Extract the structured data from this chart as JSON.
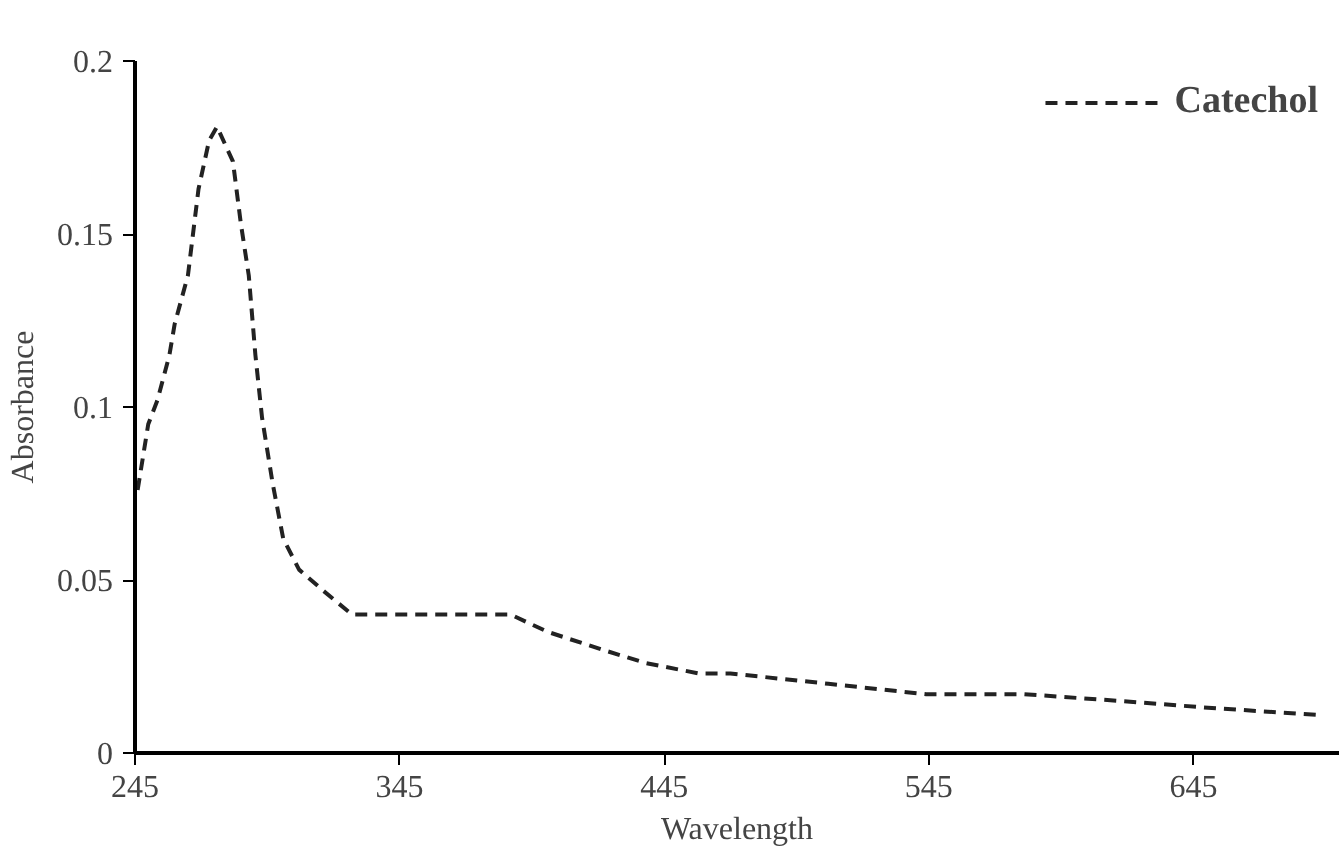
{
  "chart_data": {
    "type": "line",
    "xlabel": "Wavelength",
    "ylabel": "Absorbance",
    "xlim": [
      245,
      700
    ],
    "xticks": [
      245,
      345,
      445,
      545,
      645
    ],
    "ylim": [
      0,
      0.2
    ],
    "yticks": [
      0,
      0.05,
      0.1,
      0.15,
      0.2
    ],
    "grid": false,
    "legend": "top right",
    "line_style": "dashed",
    "marker": "none",
    "series": [
      {
        "name": "Catechol",
        "color": "#222222",
        "x": [
          246,
          250,
          253.5,
          258,
          260,
          265,
          269,
          273,
          276,
          282,
          285,
          288,
          290.5,
          293,
          297,
          301,
          307,
          316,
          327,
          361,
          387,
          401,
          421,
          438,
          458,
          470,
          507,
          544,
          581,
          618,
          652,
          692
        ],
        "values": [
          0.076,
          0.095,
          0.102,
          0.115,
          0.124,
          0.138,
          0.163,
          0.177,
          0.181,
          0.171,
          0.153,
          0.138,
          0.115,
          0.097,
          0.078,
          0.062,
          0.053,
          0.047,
          0.04,
          0.04,
          0.04,
          0.035,
          0.03,
          0.026,
          0.023,
          0.023,
          0.02,
          0.017,
          0.017,
          0.015,
          0.013,
          0.011
        ]
      }
    ]
  }
}
